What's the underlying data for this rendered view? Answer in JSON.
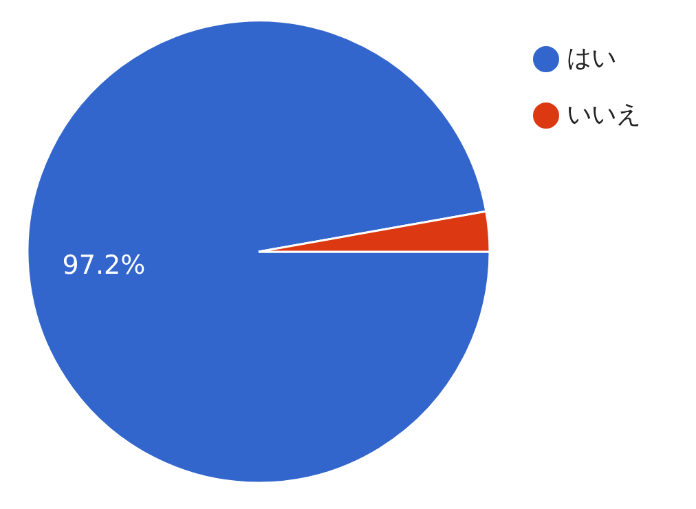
{
  "chart_data": {
    "type": "pie",
    "categories": [
      "はい",
      "いいえ"
    ],
    "values": [
      97.2,
      2.8
    ],
    "colors": [
      "#3366cc",
      "#dc3912"
    ],
    "value_labels": [
      "97.2%",
      null
    ],
    "legend": "top right"
  }
}
